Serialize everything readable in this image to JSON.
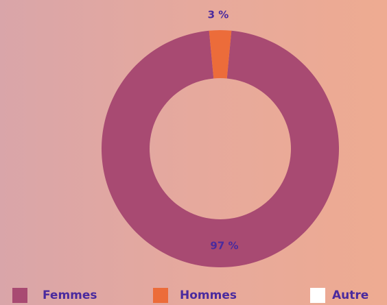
{
  "chart_data": {
    "type": "pie",
    "donut": true,
    "categories": [
      "Femmes",
      "Hommes",
      "Autre"
    ],
    "values": [
      97,
      3,
      0
    ],
    "value_labels": [
      "97 %",
      "3 %",
      null
    ],
    "colors": [
      "#a84a72",
      "#ec6c3a",
      "#ffffff"
    ],
    "legend": "bottom"
  }
}
